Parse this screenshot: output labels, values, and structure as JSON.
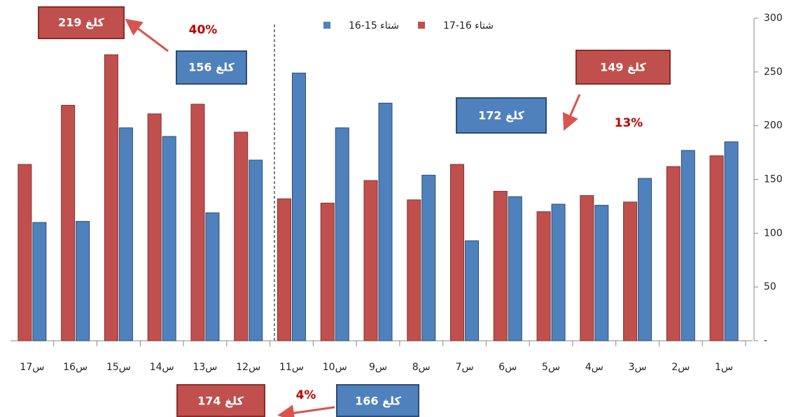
{
  "chart_data": {
    "type": "bar",
    "categories": [
      "س1",
      "س2",
      "س3",
      "س4",
      "س5",
      "س6",
      "س7",
      "س8",
      "س9",
      "س10",
      "س11",
      "س12",
      "س13",
      "س14",
      "س15",
      "س16",
      "س17"
    ],
    "series": [
      {
        "name": "شتاء 16-17",
        "color": "#c0504d",
        "values": [
          172,
          162,
          129,
          135,
          120,
          139,
          164,
          131,
          149,
          128,
          132,
          194,
          220,
          211,
          266,
          219,
          164
        ]
      },
      {
        "name": "شتاء 15-16",
        "color": "#4f81bd",
        "values": [
          185,
          177,
          151,
          126,
          127,
          134,
          93,
          154,
          221,
          198,
          249,
          168,
          119,
          190,
          198,
          111,
          110
        ]
      }
    ],
    "ylim": [
      0,
      300
    ],
    "yticks": [
      {
        "value": 0,
        "label": "-"
      },
      50,
      100,
      150,
      200,
      250,
      300
    ],
    "annotations": [
      "219 كلغ",
      "40%",
      "156 كلغ",
      "149 كلغ",
      "172 كلغ",
      "13%",
      "174 كلغ",
      "4%",
      "166 كلغ"
    ]
  }
}
